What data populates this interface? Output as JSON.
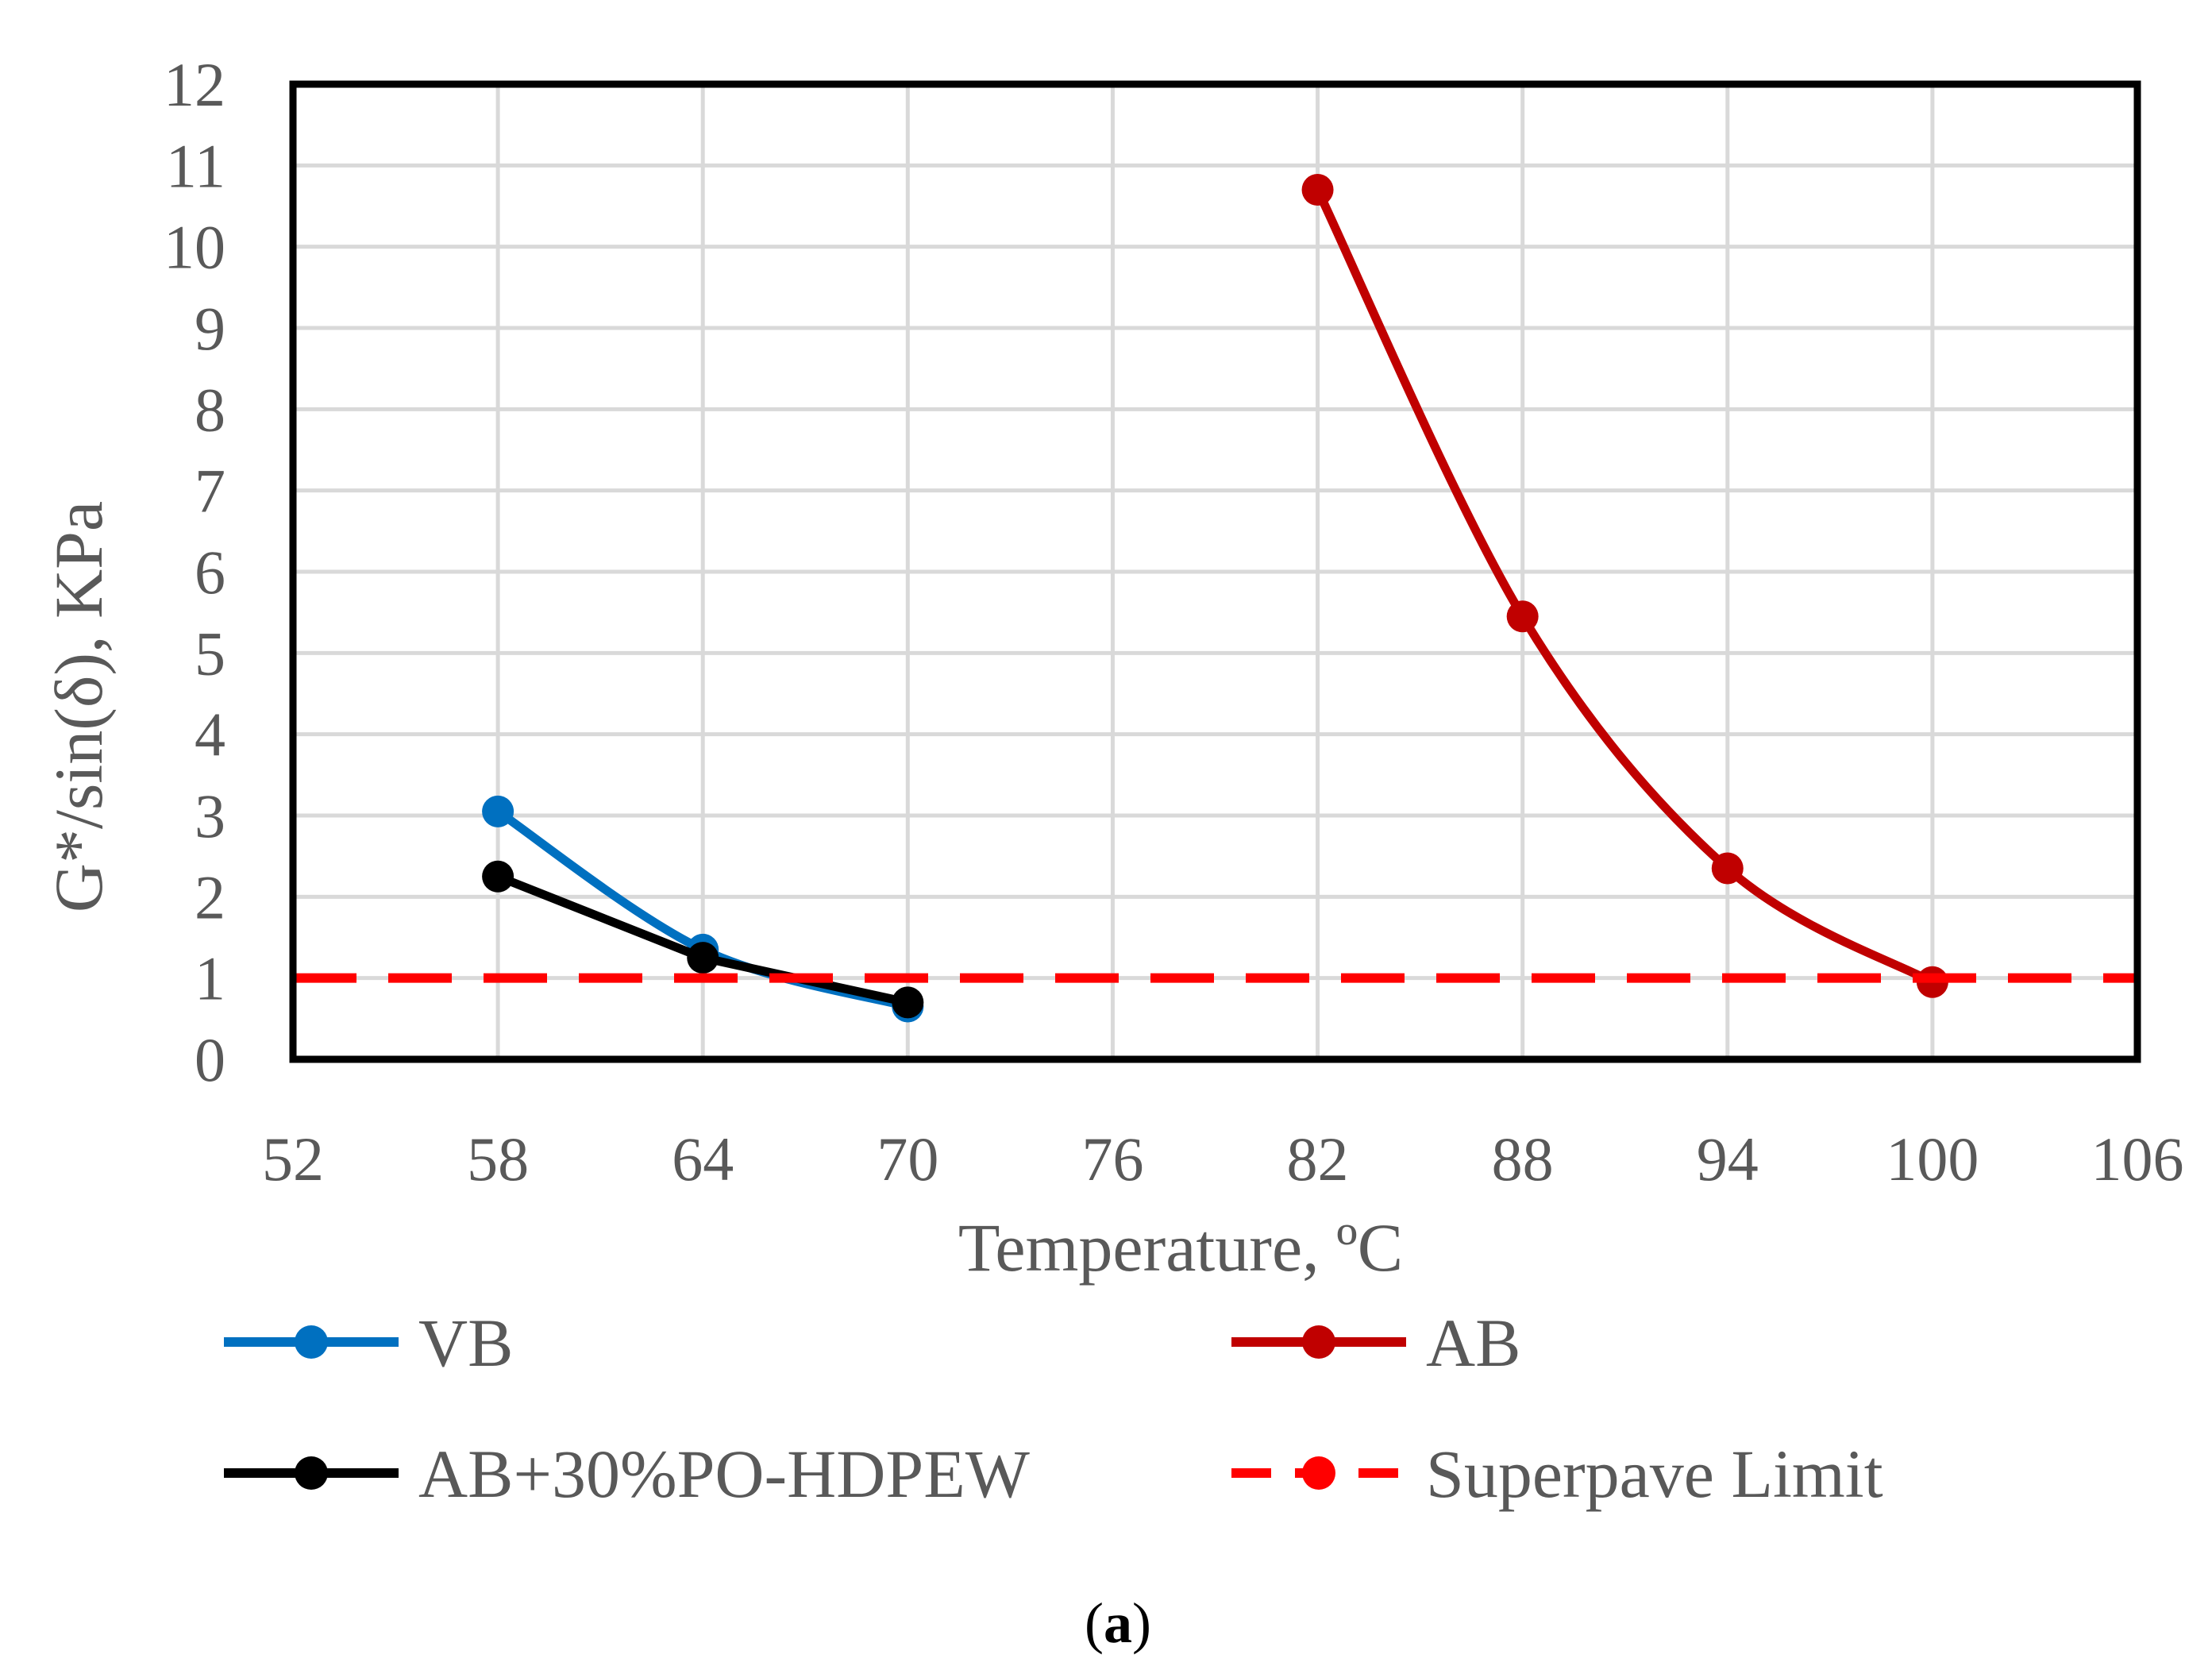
{
  "chart_data": {
    "type": "line",
    "title": "",
    "xlabel": "Temperature, ºC",
    "ylabel": "G*/sin(δ), KPa",
    "xlim": [
      52,
      106
    ],
    "ylim": [
      0,
      12
    ],
    "xticks": [
      "52",
      "58",
      "64",
      "70",
      "76",
      "82",
      "88",
      "94",
      "100",
      "106"
    ],
    "yticks": [
      "0",
      "1",
      "2",
      "3",
      "4",
      "5",
      "6",
      "7",
      "8",
      "9",
      "10",
      "11",
      "12"
    ],
    "grid": true,
    "legend_position": "bottom",
    "series": [
      {
        "name": "VB",
        "color": "#0070C0",
        "style": "solid",
        "smooth": true,
        "x": [
          58,
          64,
          70
        ],
        "y": [
          3.05,
          1.35,
          0.65
        ]
      },
      {
        "name": "AB",
        "color": "#C00000",
        "style": "solid",
        "smooth": true,
        "x": [
          82,
          88,
          94,
          100
        ],
        "y": [
          10.7,
          5.45,
          2.35,
          0.95
        ]
      },
      {
        "name": "AB+30%PO-HDPEW",
        "color": "#000000",
        "style": "solid",
        "smooth": false,
        "x": [
          58,
          64,
          70
        ],
        "y": [
          2.25,
          1.25,
          0.7
        ]
      },
      {
        "name": "Superpave Limit",
        "color": "#FF0000",
        "style": "dashed",
        "smooth": false,
        "x": [
          52,
          106
        ],
        "y": [
          1,
          1
        ]
      }
    ],
    "caption": "(a)"
  }
}
